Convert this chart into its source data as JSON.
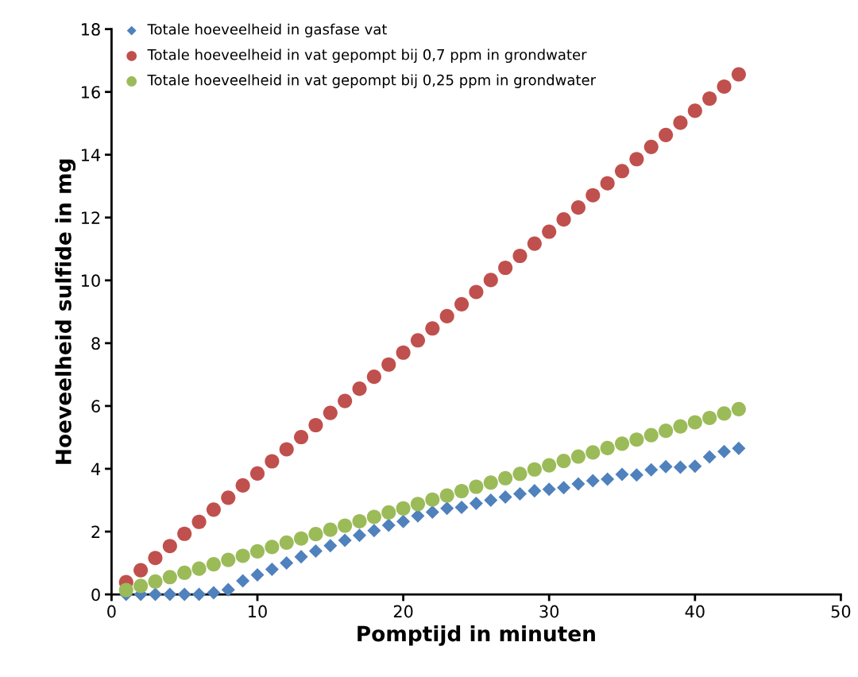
{
  "chart_data": {
    "type": "scatter",
    "xlabel": "Pomptijd in minuten",
    "ylabel": "Hoeveelheid sulfide in mg",
    "x": [
      1,
      2,
      3,
      4,
      5,
      6,
      7,
      8,
      9,
      10,
      11,
      12,
      13,
      14,
      15,
      16,
      17,
      18,
      19,
      20,
      21,
      22,
      23,
      24,
      25,
      26,
      27,
      28,
      29,
      30,
      31,
      32,
      33,
      34,
      35,
      36,
      37,
      38,
      39,
      40,
      41,
      42,
      43
    ],
    "xlim": [
      0,
      50
    ],
    "xticks": [
      0,
      10,
      20,
      30,
      40,
      50
    ],
    "ylim": [
      0,
      18
    ],
    "yticks": [
      0,
      2,
      4,
      6,
      8,
      10,
      12,
      14,
      16,
      18
    ],
    "grid": false,
    "legend": "top left",
    "series": [
      {
        "name": "Totale hoeveelheid in gasfase vat",
        "color": "#4f81bd",
        "marker": "diamond",
        "values": [
          0,
          0,
          0,
          0,
          0,
          0,
          0.05,
          0.15,
          0.43,
          0.62,
          0.8,
          1.0,
          1.2,
          1.38,
          1.55,
          1.72,
          1.88,
          2.03,
          2.2,
          2.32,
          2.5,
          2.62,
          2.74,
          2.77,
          2.9,
          3.0,
          3.1,
          3.2,
          3.3,
          3.35,
          3.4,
          3.52,
          3.62,
          3.67,
          3.82,
          3.8,
          3.97,
          4.07,
          4.05,
          4.08,
          4.38,
          4.55,
          4.65
        ]
      },
      {
        "name": "Totale hoeveelheid in vat gepompt bij 0,7 ppm in grondwater",
        "color": "#c0504d",
        "marker": "circle",
        "values": [
          0.39,
          0.77,
          1.16,
          1.54,
          1.93,
          2.31,
          2.7,
          3.08,
          3.47,
          3.85,
          4.24,
          4.62,
          5.01,
          5.39,
          5.78,
          6.16,
          6.55,
          6.93,
          7.32,
          7.7,
          8.09,
          8.47,
          8.86,
          9.24,
          9.63,
          10.01,
          10.4,
          10.78,
          11.17,
          11.55,
          11.94,
          12.32,
          12.71,
          13.09,
          13.48,
          13.86,
          14.25,
          14.63,
          15.02,
          15.4,
          15.79,
          16.17,
          16.56
        ]
      },
      {
        "name": "Totale hoeveelheid in vat gepompt bij 0,25 ppm in grondwater",
        "color": "#9bbb59",
        "marker": "circle",
        "values": [
          0.14,
          0.27,
          0.41,
          0.55,
          0.69,
          0.82,
          0.96,
          1.1,
          1.23,
          1.37,
          1.51,
          1.65,
          1.78,
          1.92,
          2.06,
          2.19,
          2.33,
          2.47,
          2.61,
          2.74,
          2.88,
          3.02,
          3.15,
          3.29,
          3.43,
          3.56,
          3.7,
          3.84,
          3.98,
          4.11,
          4.25,
          4.39,
          4.52,
          4.66,
          4.8,
          4.93,
          5.07,
          5.21,
          5.35,
          5.48,
          5.62,
          5.76,
          5.9
        ]
      }
    ]
  }
}
